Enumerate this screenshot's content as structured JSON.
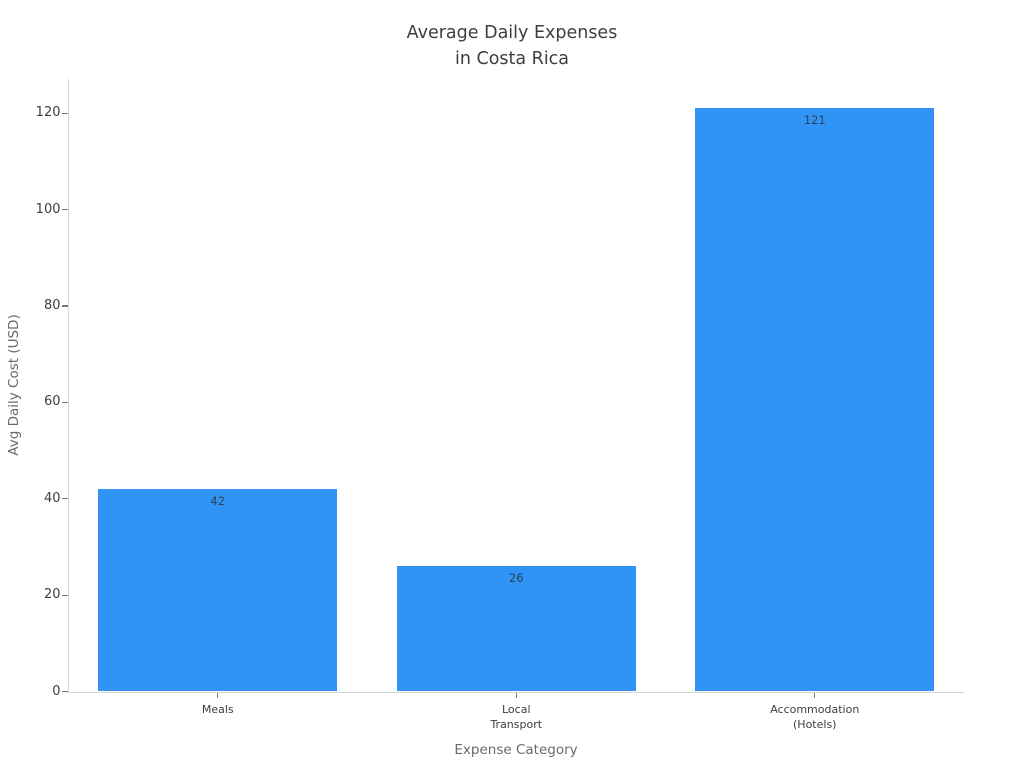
{
  "chart_data": {
    "type": "bar",
    "title": "Average Daily Expenses\nin Costa Rica",
    "xlabel": "Expense Category",
    "ylabel": "Avg Daily Cost (USD)",
    "categories": [
      "Meals",
      "Local\nTransport",
      "Accommodation\n(Hotels)"
    ],
    "values": [
      42,
      26,
      121
    ],
    "value_labels": [
      "42",
      "26",
      "121"
    ],
    "yticks": [
      0,
      20,
      40,
      60,
      80,
      100,
      120
    ],
    "ylim": [
      0,
      127.1
    ],
    "grid": false,
    "legend": "none",
    "bar_width_fraction": 0.8,
    "colors": {
      "bar": "#2f94f5",
      "value_label": "#2e4156",
      "axis_line": "#d5d5d5",
      "tick_mark": "#767676",
      "tick_label": "#3a3f45",
      "axis_title": "#666b70",
      "title": "#3a3f44",
      "background": "#ffffff"
    }
  }
}
